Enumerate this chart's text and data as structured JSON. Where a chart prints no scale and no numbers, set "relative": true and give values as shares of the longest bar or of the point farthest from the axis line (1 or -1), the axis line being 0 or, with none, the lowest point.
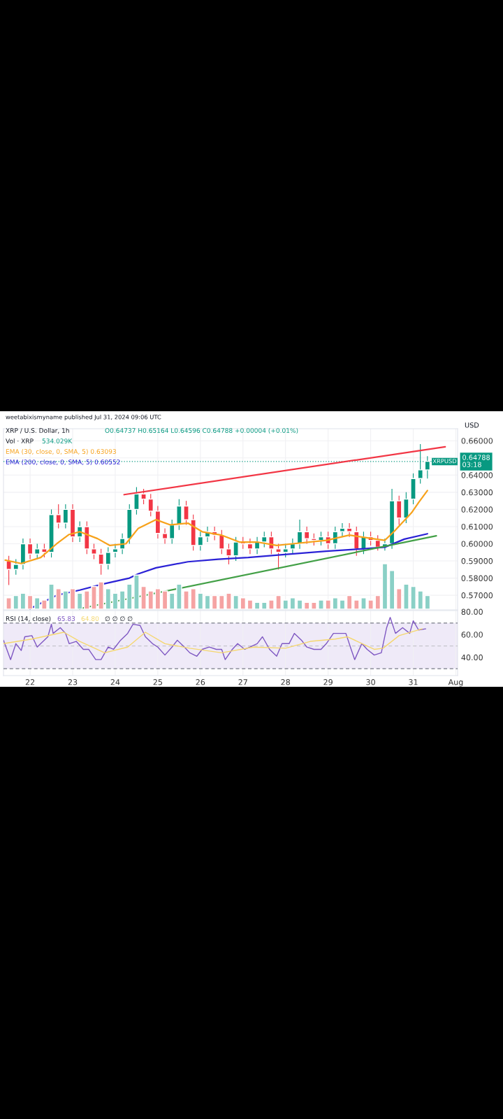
{
  "chart_data": [
    {
      "type": "candlestick",
      "title": "XRP / U.S. Dollar, 1h",
      "subtitle": "O0.64737 H0.65164 L0.64596 C0.64788 +0.00004 (+0.01%)",
      "ylabel": "USD",
      "annotations": [
        "weetabixismyname published Jul 31, 2024 09:06 UTC",
        "0.64788",
        "03:18"
      ],
      "x": [
        "2024-07-21T12:00",
        "2024-07-21T16:00",
        "2024-07-21T20:00",
        "2024-07-22T00:00",
        "2024-07-22T04:00",
        "2024-07-22T08:00",
        "2024-07-22T12:00",
        "2024-07-22T16:00",
        "2024-07-22T20:00",
        "2024-07-23T00:00",
        "2024-07-23T04:00",
        "2024-07-23T08:00",
        "2024-07-23T12:00",
        "2024-07-23T16:00",
        "2024-07-23T20:00",
        "2024-07-24T00:00",
        "2024-07-24T04:00",
        "2024-07-24T08:00",
        "2024-07-24T12:00",
        "2024-07-24T16:00",
        "2024-07-24T20:00",
        "2024-07-25T00:00",
        "2024-07-25T04:00",
        "2024-07-25T08:00",
        "2024-07-25T12:00",
        "2024-07-25T16:00",
        "2024-07-25T20:00",
        "2024-07-26T00:00",
        "2024-07-26T04:00",
        "2024-07-26T08:00",
        "2024-07-26T12:00",
        "2024-07-26T16:00",
        "2024-07-26T20:00",
        "2024-07-27T00:00",
        "2024-07-27T04:00",
        "2024-07-27T08:00",
        "2024-07-27T12:00",
        "2024-07-27T16:00",
        "2024-07-27T20:00",
        "2024-07-28T00:00",
        "2024-07-28T04:00",
        "2024-07-28T08:00",
        "2024-07-28T12:00",
        "2024-07-28T16:00",
        "2024-07-28T20:00",
        "2024-07-29T00:00",
        "2024-07-29T04:00",
        "2024-07-29T08:00",
        "2024-07-29T12:00",
        "2024-07-29T16:00",
        "2024-07-29T20:00",
        "2024-07-30T00:00",
        "2024-07-30T04:00",
        "2024-07-30T08:00",
        "2024-07-30T12:00",
        "2024-07-30T16:00",
        "2024-07-30T20:00",
        "2024-07-31T00:00",
        "2024-07-31T04:00",
        "2024-07-31T08:00"
      ],
      "ohlc": [
        [
          0.59,
          0.593,
          0.576,
          0.585
        ],
        [
          0.585,
          0.591,
          0.582,
          0.588
        ],
        [
          0.588,
          0.603,
          0.585,
          0.6
        ],
        [
          0.6,
          0.603,
          0.591,
          0.594
        ],
        [
          0.594,
          0.6,
          0.591,
          0.597
        ],
        [
          0.597,
          0.6,
          0.592,
          0.595
        ],
        [
          0.595,
          0.62,
          0.592,
          0.617
        ],
        [
          0.617,
          0.623,
          0.609,
          0.612
        ],
        [
          0.612,
          0.623,
          0.609,
          0.62
        ],
        [
          0.62,
          0.623,
          0.601,
          0.604
        ],
        [
          0.604,
          0.613,
          0.601,
          0.61
        ],
        [
          0.61,
          0.613,
          0.594,
          0.597
        ],
        [
          0.597,
          0.6,
          0.591,
          0.594
        ],
        [
          0.594,
          0.597,
          0.582,
          0.588
        ],
        [
          0.588,
          0.598,
          0.585,
          0.595
        ],
        [
          0.595,
          0.6,
          0.592,
          0.597
        ],
        [
          0.597,
          0.606,
          0.594,
          0.603
        ],
        [
          0.603,
          0.623,
          0.6,
          0.62
        ],
        [
          0.62,
          0.633,
          0.617,
          0.629
        ],
        [
          0.629,
          0.632,
          0.623,
          0.626
        ],
        [
          0.626,
          0.629,
          0.616,
          0.619
        ],
        [
          0.619,
          0.622,
          0.603,
          0.606
        ],
        [
          0.606,
          0.609,
          0.6,
          0.603
        ],
        [
          0.603,
          0.614,
          0.6,
          0.611
        ],
        [
          0.611,
          0.626,
          0.608,
          0.622
        ],
        [
          0.622,
          0.625,
          0.611,
          0.614
        ],
        [
          0.614,
          0.617,
          0.596,
          0.599
        ],
        [
          0.599,
          0.607,
          0.596,
          0.604
        ],
        [
          0.604,
          0.61,
          0.601,
          0.607
        ],
        [
          0.607,
          0.61,
          0.602,
          0.605
        ],
        [
          0.605,
          0.608,
          0.594,
          0.597
        ],
        [
          0.597,
          0.6,
          0.588,
          0.593
        ],
        [
          0.593,
          0.604,
          0.59,
          0.601
        ],
        [
          0.601,
          0.604,
          0.597,
          0.6
        ],
        [
          0.6,
          0.603,
          0.594,
          0.597
        ],
        [
          0.597,
          0.604,
          0.594,
          0.601
        ],
        [
          0.601,
          0.607,
          0.598,
          0.604
        ],
        [
          0.604,
          0.607,
          0.594,
          0.597
        ],
        [
          0.597,
          0.6,
          0.585,
          0.595
        ],
        [
          0.595,
          0.6,
          0.592,
          0.597
        ],
        [
          0.597,
          0.603,
          0.594,
          0.6
        ],
        [
          0.6,
          0.614,
          0.597,
          0.607
        ],
        [
          0.607,
          0.61,
          0.6,
          0.603
        ],
        [
          0.603,
          0.606,
          0.599,
          0.602
        ],
        [
          0.602,
          0.607,
          0.599,
          0.604
        ],
        [
          0.604,
          0.607,
          0.597,
          0.6
        ],
        [
          0.6,
          0.61,
          0.597,
          0.607
        ],
        [
          0.607,
          0.612,
          0.604,
          0.609
        ],
        [
          0.609,
          0.612,
          0.604,
          0.607
        ],
        [
          0.607,
          0.61,
          0.593,
          0.597
        ],
        [
          0.597,
          0.607,
          0.594,
          0.604
        ],
        [
          0.604,
          0.607,
          0.599,
          0.602
        ],
        [
          0.602,
          0.605,
          0.596,
          0.598
        ],
        [
          0.598,
          0.603,
          0.596,
          0.6
        ],
        [
          0.6,
          0.632,
          0.597,
          0.625
        ],
        [
          0.625,
          0.628,
          0.611,
          0.615
        ],
        [
          0.615,
          0.63,
          0.612,
          0.626
        ],
        [
          0.626,
          0.641,
          0.623,
          0.638
        ],
        [
          0.638,
          0.658,
          0.635,
          0.643
        ],
        [
          0.643,
          0.651,
          0.638,
          0.648
        ]
      ],
      "colors": [
        "#f23645",
        "#089981",
        "#089981",
        "#f23645",
        "#089981",
        "#f23645",
        "#089981",
        "#f23645",
        "#089981",
        "#f23645",
        "#089981",
        "#f23645",
        "#f23645",
        "#f23645",
        "#089981",
        "#089981",
        "#089981",
        "#089981",
        "#089981",
        "#f23645",
        "#f23645",
        "#f23645",
        "#f23645",
        "#089981",
        "#089981",
        "#f23645",
        "#f23645",
        "#089981",
        "#089981",
        "#f23645",
        "#f23645",
        "#f23645",
        "#089981",
        "#f23645",
        "#f23645",
        "#089981",
        "#089981",
        "#f23645",
        "#f23645",
        "#089981",
        "#089981",
        "#089981",
        "#f23645",
        "#f23645",
        "#089981",
        "#f23645",
        "#089981",
        "#089981",
        "#f23645",
        "#f23645",
        "#089981",
        "#f23645",
        "#f23645",
        "#089981",
        "#089981",
        "#f23645",
        "#089981",
        "#089981",
        "#089981",
        "#089981"
      ],
      "series": [
        {
          "type": "line",
          "name": "EMA (30, close, 0, SMA, 5) 0.63093",
          "color": "#f7a21b",
          "x": [
            "2024-07-21T10:00",
            "2024-07-21T19:00",
            "2024-07-22T06:00",
            "2024-07-22T15:00",
            "2024-07-22T22:00",
            "2024-07-23T04:00",
            "2024-07-23T14:00",
            "2024-07-23T21:00",
            "2024-07-24T06:00",
            "2024-07-24T13:00",
            "2024-07-24T23:00",
            "2024-07-25T07:00",
            "2024-07-25T17:00",
            "2024-07-26T01:00",
            "2024-07-26T12:00",
            "2024-07-26T22:00",
            "2024-07-27T08:00",
            "2024-07-27T19:00",
            "2024-07-28T04:00",
            "2024-07-28T23:00",
            "2024-07-29T12:00",
            "2024-07-30T01:00",
            "2024-07-30T08:00",
            "2024-07-30T14:00",
            "2024-07-30T23:00",
            "2024-07-31T03:00",
            "2024-07-31T08:00"
          ],
          "values": [
            0.5905,
            0.5885,
            0.592,
            0.6,
            0.6054,
            0.607,
            0.603,
            0.599,
            0.6,
            0.609,
            0.614,
            0.611,
            0.612,
            0.607,
            0.605,
            0.601,
            0.601,
            0.599,
            0.6,
            0.602,
            0.605,
            0.603,
            0.602,
            0.608,
            0.618,
            0.624,
            0.631
          ]
        },
        {
          "type": "line",
          "name": "EMA (200, close, 0, SMA, 5) 0.60552",
          "color": "#2b22d6",
          "x": [
            "2024-07-22T00:00",
            "2024-07-22T15:00",
            "2024-07-23T04:00",
            "2024-07-23T17:00",
            "2024-07-24T08:00",
            "2024-07-24T13:00",
            "2024-07-24T23:00",
            "2024-07-25T17:00",
            "2024-07-26T10:00",
            "2024-07-27T03:00",
            "2024-07-27T21:00",
            "2024-07-28T23:00",
            "2024-07-29T19:00",
            "2024-07-30T08:00",
            "2024-07-30T19:00",
            "2024-07-31T08:00"
          ],
          "values": [
            0.5622,
            0.57,
            0.573,
            0.5765,
            0.58,
            0.5825,
            0.586,
            0.5895,
            0.591,
            0.592,
            0.5935,
            0.5957,
            0.597,
            0.598,
            0.6027,
            0.6058
          ]
        },
        {
          "type": "line",
          "color": "#f23645",
          "x": [
            "2024-07-24T05:00",
            "2024-07-31T18:00"
          ],
          "values": [
            0.6286,
            0.6565
          ]
        },
        {
          "type": "line",
          "color": "#43a047",
          "x": [
            "2024-07-23T04:00",
            "2024-07-31T13:00"
          ],
          "values": [
            0.5622,
            0.6046
          ]
        }
      ],
      "ref_lines": [
        {
          "axis": "y",
          "value": 0.64788,
          "label": "XRPUSD",
          "color": "#089981",
          "line_style": "dotted"
        }
      ],
      "xlim": [
        "2024-07-21T09:00",
        "2024-08-01T01:00"
      ],
      "ylim": [
        0.5615,
        0.667
      ],
      "yticks": [
        {
          "value": 0.57,
          "label": "0.57000"
        },
        {
          "value": 0.58,
          "label": "0.58000"
        },
        {
          "value": 0.59,
          "label": "0.59000"
        },
        {
          "value": 0.6,
          "label": "0.60000"
        },
        {
          "value": 0.61,
          "label": "0.61000"
        },
        {
          "value": 0.62,
          "label": "0.62000"
        },
        {
          "value": 0.63,
          "label": "0.63000"
        },
        {
          "value": 0.64,
          "label": "0.64000"
        },
        {
          "value": 0.65,
          "label": null
        },
        {
          "value": 0.66,
          "label": "0.66000"
        }
      ],
      "xticks": [
        {
          "value": "2024-07-22",
          "label": null
        },
        {
          "value": "2024-07-23",
          "label": null
        },
        {
          "value": "2024-07-24",
          "label": null
        },
        {
          "value": "2024-07-25",
          "label": null
        },
        {
          "value": "2024-07-26",
          "label": null
        },
        {
          "value": "2024-07-27",
          "label": null
        },
        {
          "value": "2024-07-28",
          "label": null
        },
        {
          "value": "2024-07-29",
          "label": null
        },
        {
          "value": "2024-07-30",
          "label": null
        },
        {
          "value": "2024-07-31",
          "label": null
        },
        {
          "value": "2024-08-01",
          "label": null
        }
      ],
      "tick_labels": "y",
      "grid": true,
      "legend": "top left"
    },
    {
      "type": "bar",
      "relative": true,
      "title": "Vol · XRP",
      "annotations": [
        "534.029K"
      ],
      "categories": [
        null,
        null,
        null,
        null,
        null,
        null,
        null,
        null,
        null,
        null,
        null,
        null,
        null,
        null,
        null,
        null,
        null,
        null,
        null,
        null,
        null,
        null,
        null,
        null,
        null,
        null,
        null,
        null,
        null,
        null,
        null,
        null,
        null,
        null,
        null,
        null,
        null,
        null,
        null,
        null,
        null,
        null,
        null,
        null,
        null,
        null,
        null,
        null,
        null,
        null,
        null,
        null,
        null,
        null,
        null,
        null,
        null,
        null,
        null,
        null
      ],
      "values": [
        0.25,
        0.3,
        0.35,
        0.3,
        0.25,
        0.2,
        0.55,
        0.45,
        0.4,
        0.45,
        0.35,
        0.4,
        0.5,
        0.6,
        0.45,
        0.35,
        0.4,
        0.55,
        0.75,
        0.5,
        0.4,
        0.45,
        0.4,
        0.35,
        0.55,
        0.4,
        0.45,
        0.35,
        0.3,
        0.3,
        0.3,
        0.35,
        0.3,
        0.25,
        0.2,
        0.15,
        0.15,
        0.2,
        0.3,
        0.2,
        0.25,
        0.2,
        0.15,
        0.15,
        0.2,
        0.2,
        0.25,
        0.2,
        0.3,
        0.2,
        0.25,
        0.2,
        0.3,
        1,
        0.85,
        0.45,
        0.55,
        0.5,
        0.4,
        0.3
      ],
      "colors": [
        "#f5a3a3",
        "#8ad0c6",
        "#8ad0c6",
        "#f5a3a3",
        "#8ad0c6",
        "#f5a3a3",
        "#8ad0c6",
        "#f5a3a3",
        "#8ad0c6",
        "#f5a3a3",
        "#8ad0c6",
        "#f5a3a3",
        "#f5a3a3",
        "#f5a3a3",
        "#8ad0c6",
        "#8ad0c6",
        "#8ad0c6",
        "#8ad0c6",
        "#8ad0c6",
        "#f5a3a3",
        "#f5a3a3",
        "#f5a3a3",
        "#f5a3a3",
        "#8ad0c6",
        "#8ad0c6",
        "#f5a3a3",
        "#f5a3a3",
        "#8ad0c6",
        "#8ad0c6",
        "#f5a3a3",
        "#f5a3a3",
        "#f5a3a3",
        "#8ad0c6",
        "#f5a3a3",
        "#f5a3a3",
        "#8ad0c6",
        "#8ad0c6",
        "#f5a3a3",
        "#f5a3a3",
        "#8ad0c6",
        "#8ad0c6",
        "#8ad0c6",
        "#f5a3a3",
        "#f5a3a3",
        "#8ad0c6",
        "#f5a3a3",
        "#8ad0c6",
        "#8ad0c6",
        "#f5a3a3",
        "#f5a3a3",
        "#8ad0c6",
        "#f5a3a3",
        "#f5a3a3",
        "#8ad0c6",
        "#8ad0c6",
        "#f5a3a3",
        "#8ad0c6",
        "#8ad0c6",
        "#8ad0c6",
        "#8ad0c6"
      ],
      "tick_labels": false
    },
    {
      "type": "line",
      "title": "RSI (14, close)",
      "annotations": [
        "∅ ∅ ∅ ∅"
      ],
      "series": [
        {
          "name": "65.83",
          "color": "#7e57c2",
          "x": [
            "2024-07-21T09:00",
            "2024-07-21T13:00",
            "2024-07-21T16:00",
            "2024-07-21T19:00",
            "2024-07-21T21:00",
            "2024-07-22T01:00",
            "2024-07-22T04:00",
            "2024-07-22T06:00",
            "2024-07-22T10:00",
            "2024-07-22T12:00",
            "2024-07-22T13:00",
            "2024-07-22T17:00",
            "2024-07-22T20:00",
            "2024-07-22T22:00",
            "2024-07-23T02:00",
            "2024-07-23T06:00",
            "2024-07-23T09:00",
            "2024-07-23T13:00",
            "2024-07-23T16:00",
            "2024-07-23T20:00",
            "2024-07-23T23:00",
            "2024-07-24T03:00",
            "2024-07-24T07:00",
            "2024-07-24T10:00",
            "2024-07-24T14:00",
            "2024-07-24T17:00",
            "2024-07-24T21:00",
            "2024-07-25T00:00",
            "2024-07-25T04:00",
            "2024-07-25T08:00",
            "2024-07-25T11:00",
            "2024-07-25T15:00",
            "2024-07-25T18:00",
            "2024-07-25T22:00",
            "2024-07-26T01:00",
            "2024-07-26T05:00",
            "2024-07-26T09:00",
            "2024-07-26T12:00",
            "2024-07-26T14:00",
            "2024-07-26T18:00",
            "2024-07-26T21:00",
            "2024-07-27T01:00",
            "2024-07-27T04:00",
            "2024-07-27T08:00",
            "2024-07-27T11:00",
            "2024-07-27T15:00",
            "2024-07-27T19:00",
            "2024-07-27T22:00",
            "2024-07-28T02:00",
            "2024-07-28T05:00",
            "2024-07-28T09:00",
            "2024-07-28T12:00",
            "2024-07-28T16:00",
            "2024-07-28T20:00",
            "2024-07-28T23:00",
            "2024-07-29T03:00",
            "2024-07-29T06:00",
            "2024-07-29T10:00",
            "2024-07-29T13:00",
            "2024-07-29T15:00",
            "2024-07-29T19:00",
            "2024-07-29T22:00",
            "2024-07-30T02:00",
            "2024-07-30T06:00",
            "2024-07-30T09:00",
            "2024-07-30T11:00",
            "2024-07-30T14:00",
            "2024-07-30T18:00",
            "2024-07-30T22:00",
            "2024-07-31T00:00",
            "2024-07-31T03:00",
            "2024-07-31T07:00"
          ],
          "values": [
            55,
            38,
            52,
            46,
            58,
            59,
            49,
            52,
            58,
            69,
            61,
            66,
            61,
            52,
            54,
            47,
            47,
            38,
            38,
            49,
            47,
            55,
            61,
            69,
            68,
            58,
            52,
            49,
            42,
            49,
            55,
            49,
            44,
            41,
            47,
            49,
            47,
            47,
            38,
            47,
            52,
            47,
            49,
            52,
            58,
            47,
            41,
            52,
            52,
            61,
            55,
            49,
            47,
            47,
            52,
            61,
            61,
            61,
            47,
            38,
            52,
            47,
            42,
            44,
            66,
            75,
            61,
            66,
            61,
            72,
            64,
            65
          ]
        },
        {
          "name": "64.80",
          "color": "#f5d76e",
          "x": [
            "2024-07-21T09:00",
            "2024-07-22T01:00",
            "2024-07-22T19:00",
            "2024-07-23T04:00",
            "2024-07-23T18:00",
            "2024-07-24T07:00",
            "2024-07-24T17:00",
            "2024-07-25T04:00",
            "2024-07-25T18:00",
            "2024-07-26T12:00",
            "2024-07-27T06:00",
            "2024-07-28T00:00",
            "2024-07-28T14:00",
            "2024-07-29T04:00",
            "2024-07-29T11:00",
            "2024-07-30T02:00",
            "2024-07-30T07:00",
            "2024-07-30T16:00",
            "2024-07-31T05:00"
          ],
          "values": [
            52,
            56,
            62,
            54,
            44,
            49,
            62,
            52,
            48,
            44,
            49,
            48,
            54,
            56,
            58,
            47,
            48,
            59,
            65
          ]
        }
      ],
      "ref_lines": [
        {
          "axis": "y",
          "value": 70,
          "color": "#787b86",
          "line_style": "dashed"
        },
        {
          "axis": "y",
          "value": 50,
          "color": "#c5c5cc",
          "line_style": "dashed"
        },
        {
          "axis": "y",
          "value": 30,
          "color": "#787b86",
          "line_style": "dashed"
        }
      ],
      "bands": [
        {
          "axis": "y",
          "from": 30,
          "to": 70,
          "color": "#efeaf8"
        }
      ],
      "xlim": [
        "2024-07-21T09:00",
        "2024-08-01T01:00"
      ],
      "ylim": [
        24,
        81
      ],
      "yticks": [
        {
          "value": 40,
          "label": "40.00"
        },
        {
          "value": 60,
          "label": "60.00"
        },
        {
          "value": 80,
          "label": "80.00"
        }
      ],
      "xticks": [
        {
          "value": "2024-07-22",
          "label": "22"
        },
        {
          "value": "2024-07-23",
          "label": "23"
        },
        {
          "value": "2024-07-24",
          "label": "24"
        },
        {
          "value": "2024-07-25",
          "label": "25"
        },
        {
          "value": "2024-07-26",
          "label": "26"
        },
        {
          "value": "2024-07-27",
          "label": "27"
        },
        {
          "value": "2024-07-28",
          "label": "28"
        },
        {
          "value": "2024-07-29",
          "label": "29"
        },
        {
          "value": "2024-07-30",
          "label": "30"
        },
        {
          "value": "2024-07-31",
          "label": "31"
        },
        {
          "value": "2024-08-01",
          "label": "Aug"
        }
      ],
      "grid": "x",
      "legend": "top left"
    }
  ]
}
